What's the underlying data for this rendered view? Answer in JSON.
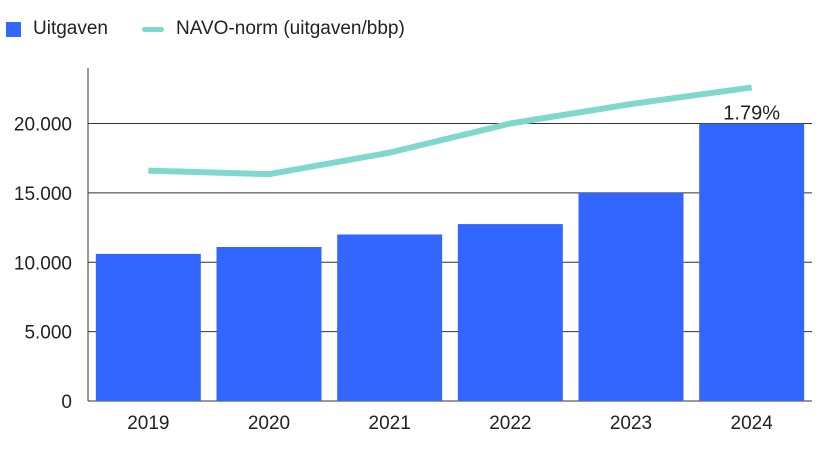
{
  "legend": {
    "bars_label": "Uitgaven",
    "line_label": "NAVO-norm (uitgaven/bbp)"
  },
  "colors": {
    "bars": "#3366ff",
    "line": "#7fd8cb",
    "grid": "#333333"
  },
  "chart_data": {
    "type": "bar",
    "categories": [
      "2019",
      "2020",
      "2021",
      "2022",
      "2023",
      "2024"
    ],
    "series": [
      {
        "name": "Uitgaven",
        "type": "bar",
        "values": [
          10600,
          11100,
          12000,
          12750,
          15000,
          20000
        ]
      },
      {
        "name": "NAVO-norm (uitgaven/bbp)",
        "type": "line",
        "values": [
          16600,
          16350,
          17900,
          20000,
          21400,
          22600
        ]
      }
    ],
    "data_labels": [
      {
        "category": "2024",
        "text": "1.79%"
      }
    ],
    "y_ticks": [
      0,
      5000,
      10000,
      15000,
      20000
    ],
    "y_tick_labels": [
      "0",
      "5.000",
      "10.000",
      "15.000",
      "20.000"
    ],
    "ylim": [
      0,
      24000
    ],
    "grid": true,
    "legend_position": "top-left"
  }
}
